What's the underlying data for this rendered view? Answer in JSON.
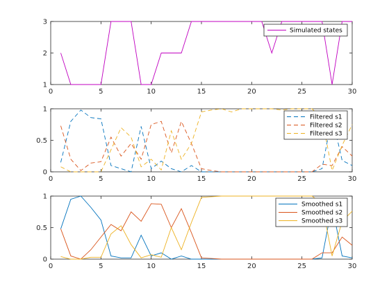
{
  "chart_data": [
    {
      "type": "line",
      "title": "",
      "xlabel": "",
      "ylabel": "",
      "xlim": [
        0,
        30
      ],
      "ylim": [
        1,
        3
      ],
      "xticks": [
        "0",
        "5",
        "10",
        "15",
        "20",
        "25",
        "30"
      ],
      "yticks": [
        "1",
        "2",
        "3"
      ],
      "grid": false,
      "legend_position": "top-right",
      "x": [
        1,
        2,
        3,
        4,
        5,
        6,
        7,
        8,
        9,
        10,
        11,
        12,
        13,
        14,
        15,
        16,
        17,
        18,
        19,
        20,
        21,
        22,
        23,
        24,
        25,
        26,
        27,
        28,
        29,
        30
      ],
      "series": [
        {
          "name": "Simulated states",
          "color": "#c000c0",
          "dash": "solid",
          "values": [
            2,
            1,
            1,
            1,
            1,
            3,
            3,
            3,
            1,
            1,
            2,
            2,
            2,
            3,
            3,
            3,
            3,
            3,
            3,
            3,
            3,
            2,
            3,
            3,
            3,
            3,
            3,
            1,
            3,
            3
          ]
        }
      ]
    },
    {
      "type": "line",
      "title": "",
      "xlabel": "",
      "ylabel": "",
      "xlim": [
        0,
        30
      ],
      "ylim": [
        0,
        1
      ],
      "xticks": [
        "0",
        "5",
        "10",
        "15",
        "20",
        "25",
        "30"
      ],
      "yticks": [
        "0",
        "0.5",
        "1"
      ],
      "grid": false,
      "legend_position": "top-right",
      "x": [
        1,
        2,
        3,
        4,
        5,
        6,
        7,
        8,
        9,
        10,
        11,
        12,
        13,
        14,
        15,
        16,
        17,
        18,
        19,
        20,
        21,
        22,
        23,
        24,
        25,
        26,
        27,
        28,
        29,
        30
      ],
      "series": [
        {
          "name": "Filtered s1",
          "color": "#0072bd",
          "dash": "dashed",
          "values": [
            0.15,
            0.8,
            0.98,
            0.86,
            0.84,
            0.1,
            0.05,
            0.0,
            0.72,
            0.05,
            0.17,
            0.05,
            0.0,
            0.1,
            0.0,
            0.0,
            0.0,
            0.0,
            0.0,
            0.0,
            0.0,
            0.0,
            0.0,
            0.0,
            0.0,
            0.0,
            0.05,
            0.88,
            0.18,
            0.1
          ]
        },
        {
          "name": "Filtered s2",
          "color": "#d95319",
          "dash": "dashed",
          "values": [
            0.73,
            0.2,
            0.02,
            0.14,
            0.16,
            0.55,
            0.25,
            0.45,
            0.2,
            0.75,
            0.8,
            0.3,
            0.8,
            0.45,
            0.05,
            0.02,
            0.0,
            0.0,
            0.0,
            0.0,
            0.0,
            0.0,
            0.0,
            0.0,
            0.0,
            0.0,
            0.12,
            0.1,
            0.4,
            0.25
          ]
        },
        {
          "name": "Filtered s3",
          "color": "#edb120",
          "dash": "dashed",
          "values": [
            0.08,
            0.0,
            0.0,
            0.0,
            0.0,
            0.35,
            0.7,
            0.55,
            0.08,
            0.2,
            0.03,
            0.65,
            0.2,
            0.45,
            0.95,
            0.98,
            1.0,
            0.95,
            1.0,
            1.0,
            1.0,
            1.0,
            0.98,
            1.0,
            1.0,
            1.0,
            0.85,
            0.02,
            0.42,
            0.75
          ]
        }
      ]
    },
    {
      "type": "line",
      "title": "",
      "xlabel": "",
      "ylabel": "",
      "xlim": [
        0,
        30
      ],
      "ylim": [
        0,
        1
      ],
      "xticks": [
        "0",
        "5",
        "10",
        "15",
        "20",
        "25",
        "30"
      ],
      "yticks": [
        "0",
        "0.5",
        "1"
      ],
      "grid": false,
      "legend_position": "top-right",
      "x": [
        1,
        2,
        3,
        4,
        5,
        6,
        7,
        8,
        9,
        10,
        11,
        12,
        13,
        14,
        15,
        16,
        17,
        18,
        19,
        20,
        21,
        22,
        23,
        24,
        25,
        26,
        27,
        28,
        29,
        30
      ],
      "series": [
        {
          "name": "Smoothed s1",
          "color": "#0072bd",
          "dash": "solid",
          "values": [
            0.48,
            0.95,
            1.0,
            0.82,
            0.62,
            0.05,
            0.02,
            0.02,
            0.38,
            0.05,
            0.1,
            0.0,
            0.05,
            0.0,
            0.0,
            0.0,
            0.0,
            0.0,
            0.0,
            0.0,
            0.0,
            0.0,
            0.0,
            0.0,
            0.0,
            0.0,
            0.02,
            0.85,
            0.05,
            0.02
          ]
        },
        {
          "name": "Smoothed s2",
          "color": "#d95319",
          "dash": "solid",
          "values": [
            0.48,
            0.05,
            0.0,
            0.15,
            0.35,
            0.55,
            0.45,
            0.75,
            0.6,
            0.88,
            0.87,
            0.5,
            0.8,
            0.42,
            0.02,
            0.01,
            0.0,
            0.0,
            0.0,
            0.0,
            0.0,
            0.0,
            0.0,
            0.0,
            0.0,
            0.0,
            0.1,
            0.1,
            0.35,
            0.22
          ]
        },
        {
          "name": "Smoothed s3",
          "color": "#edb120",
          "dash": "solid",
          "values": [
            0.04,
            0.0,
            0.0,
            0.03,
            0.03,
            0.4,
            0.53,
            0.23,
            0.02,
            0.07,
            0.03,
            0.5,
            0.15,
            0.58,
            0.98,
            0.99,
            1.0,
            1.0,
            1.0,
            1.0,
            1.0,
            1.0,
            1.0,
            1.0,
            1.0,
            1.0,
            0.88,
            0.05,
            0.6,
            0.76
          ]
        }
      ]
    }
  ]
}
